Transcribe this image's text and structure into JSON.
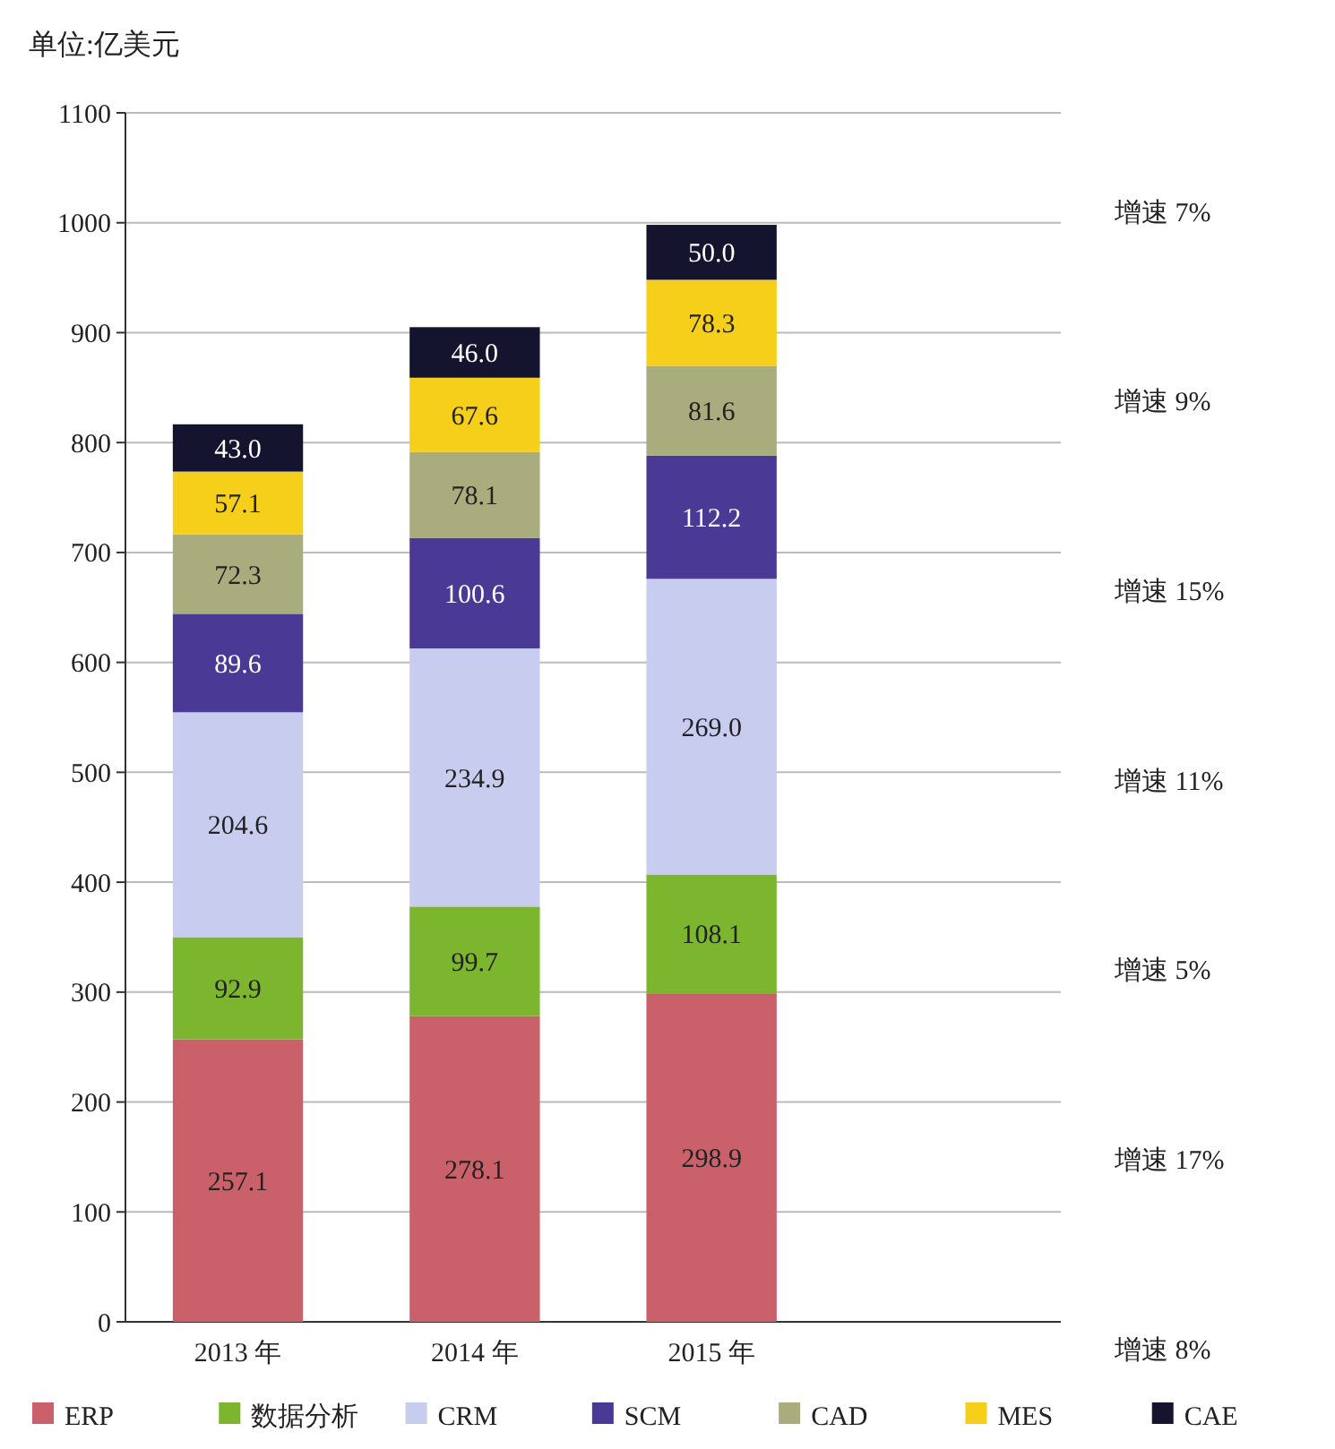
{
  "chart_data": {
    "type": "bar",
    "stacked": true,
    "ylabel": "单位:亿美元",
    "categories": [
      "2013 年",
      "2014 年",
      "2015 年"
    ],
    "series": [
      {
        "name": "ERP",
        "color": "#c9606a",
        "values": [
          257.1,
          278.1,
          298.9
        ],
        "value_labels": [
          "257.1",
          "278.1",
          "298.9"
        ]
      },
      {
        "name": "数据分析",
        "color": "#7cb52e",
        "values": [
          92.9,
          99.7,
          108.1
        ],
        "value_labels": [
          "92.9",
          "99.7",
          "108.1"
        ]
      },
      {
        "name": "CRM",
        "color": "#c8cdf0",
        "values": [
          204.6,
          234.9,
          269
        ],
        "value_labels": [
          "204.6",
          "234.9",
          "269.0"
        ]
      },
      {
        "name": "SCM",
        "color": "#4a3a96",
        "values": [
          89.6,
          100.6,
          112.2
        ],
        "value_labels": [
          "89.6",
          "100.6",
          "112.2"
        ]
      },
      {
        "name": "CAD",
        "color": "#a9ac7c",
        "values": [
          72.3,
          78.1,
          81.6
        ],
        "value_labels": [
          "72.3",
          "78.1",
          "81.6"
        ]
      },
      {
        "name": "MES",
        "color": "#f5cf1a",
        "values": [
          57.1,
          67.6,
          78.3
        ],
        "value_labels": [
          "57.1",
          "67.6",
          "78.3"
        ]
      },
      {
        "name": "CAE",
        "color": "#14142e",
        "values": [
          43,
          46,
          50
        ],
        "value_labels": [
          "43.0",
          "46.0",
          "50.0"
        ]
      }
    ],
    "ylim": [
      0,
      1100
    ],
    "yticks": [
      0,
      100,
      200,
      300,
      400,
      500,
      600,
      700,
      800,
      900,
      1000,
      1100
    ],
    "grid": "y",
    "legend": "bottom",
    "annotations": [
      "增速 7%",
      "增速 9%",
      "增速 15%",
      "增速 11%",
      "增速 5%",
      "增速 17%",
      "增速 8%"
    ]
  }
}
